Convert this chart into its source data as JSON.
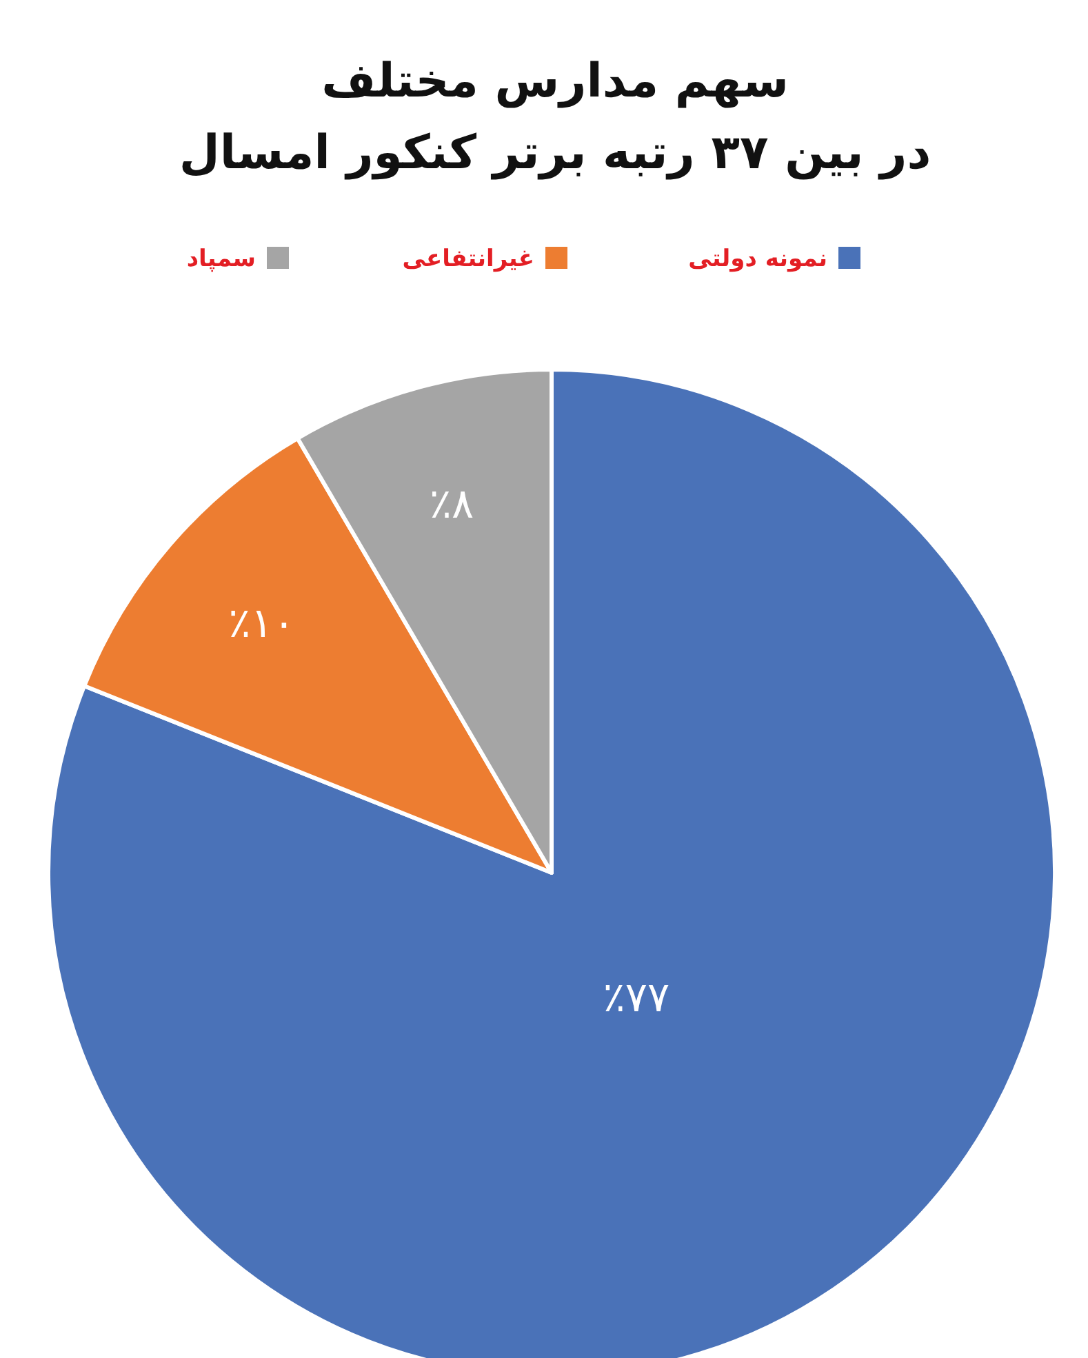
{
  "chart_data": {
    "type": "pie",
    "title": "سهم مدارس مختلف\nدر بین ۳۷ رتبه برتر کنکور امسال",
    "categories": [
      "نمونه دولتی",
      "غیرانتفاعی",
      "سمپاد"
    ],
    "values": [
      77,
      10,
      8
    ],
    "colors": [
      "#4a72b8",
      "#ed7d31",
      "#a5a5a5"
    ],
    "value_labels": [
      "٪۷۷",
      "٪۱۰",
      "٪۸"
    ],
    "legend": "top"
  }
}
